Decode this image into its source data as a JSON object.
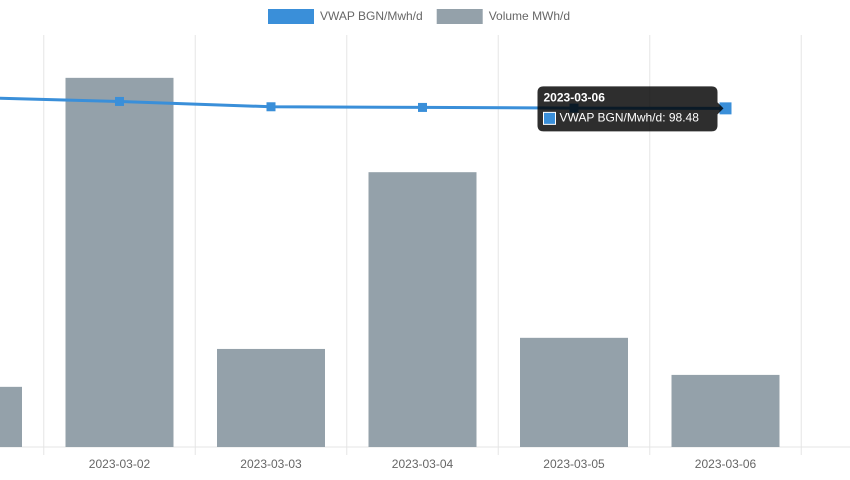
{
  "chart_data": {
    "type": "bar-line",
    "categories": [
      null,
      "2023-03-02",
      "2023-03-03",
      "2023-03-04",
      "2023-03-05",
      "2023-03-06",
      null
    ],
    "series": [
      {
        "name": "VWAP BGN/Mwh/d",
        "type": "line",
        "axis": "y2",
        "color": "#3a8fd9",
        "values": [
          99.3,
          99.0,
          98.6,
          98.55,
          98.5,
          98.48,
          null
        ]
      },
      {
        "name": "Volume MWh/d",
        "type": "bar",
        "color": "#94a1aa",
        "values": [
          14.6,
          89.6,
          23.8,
          66.7,
          26.5,
          17.5,
          null
        ]
      }
    ],
    "ylim": [
      0,
      100
    ],
    "y2lim": [
      73,
      104
    ],
    "grid": true,
    "legend": "top",
    "tooltip": {
      "title": "2023-03-06",
      "series": 0,
      "index": 5
    }
  }
}
